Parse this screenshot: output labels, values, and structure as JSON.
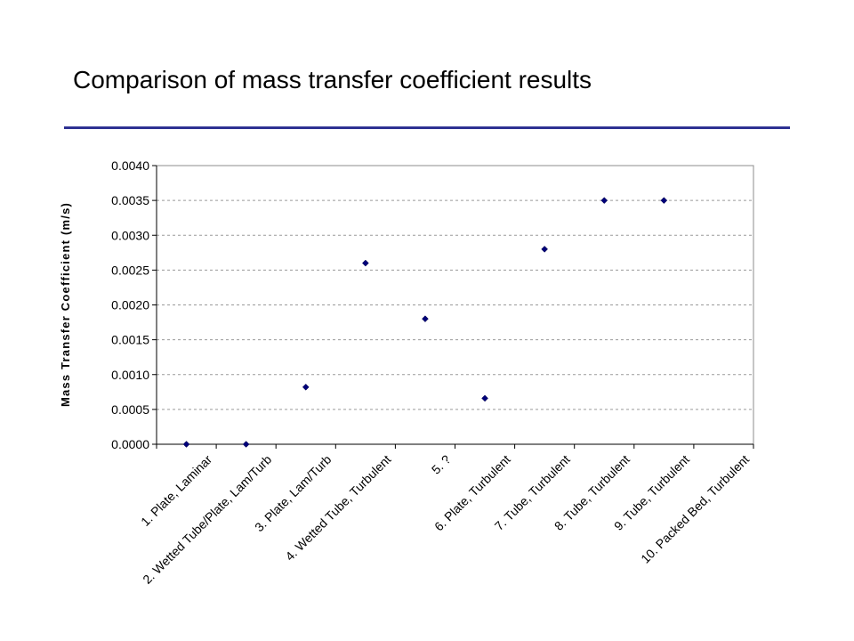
{
  "slide": {
    "title": "Comparison of mass transfer coefficient results"
  },
  "colors": {
    "accent_rule": "#2e3192",
    "marker": "#00007a",
    "gridline": "#9a9a9a"
  },
  "chart_data": {
    "type": "scatter",
    "title": "",
    "xlabel": "",
    "ylabel": "Mass Transfer Coefficient (m/s)",
    "ylim": [
      0,
      0.004
    ],
    "y_ticks": [
      "0.0000",
      "0.0005",
      "0.0010",
      "0.0015",
      "0.0020",
      "0.0025",
      "0.0030",
      "0.0035",
      "0.0040"
    ],
    "grid": true,
    "categories": [
      "1. Plate, Laminar",
      "2. Wetted Tube/Plate, Lam/Turb",
      "3. Plate, Lam/Turb",
      "4. Wetted Tube, Turbulent",
      "5. ?",
      "6. Plate, Turbulent",
      "7. Tube, Turbulent",
      "8. Tube, Turbulent",
      "9. Tube, Turbulent",
      "10. Packed Bed, Turbulent"
    ],
    "values": [
      0.0,
      0.0,
      0.00082,
      0.0026,
      0.0018,
      0.00066,
      0.0028,
      0.0035,
      0.0035,
      null
    ]
  }
}
